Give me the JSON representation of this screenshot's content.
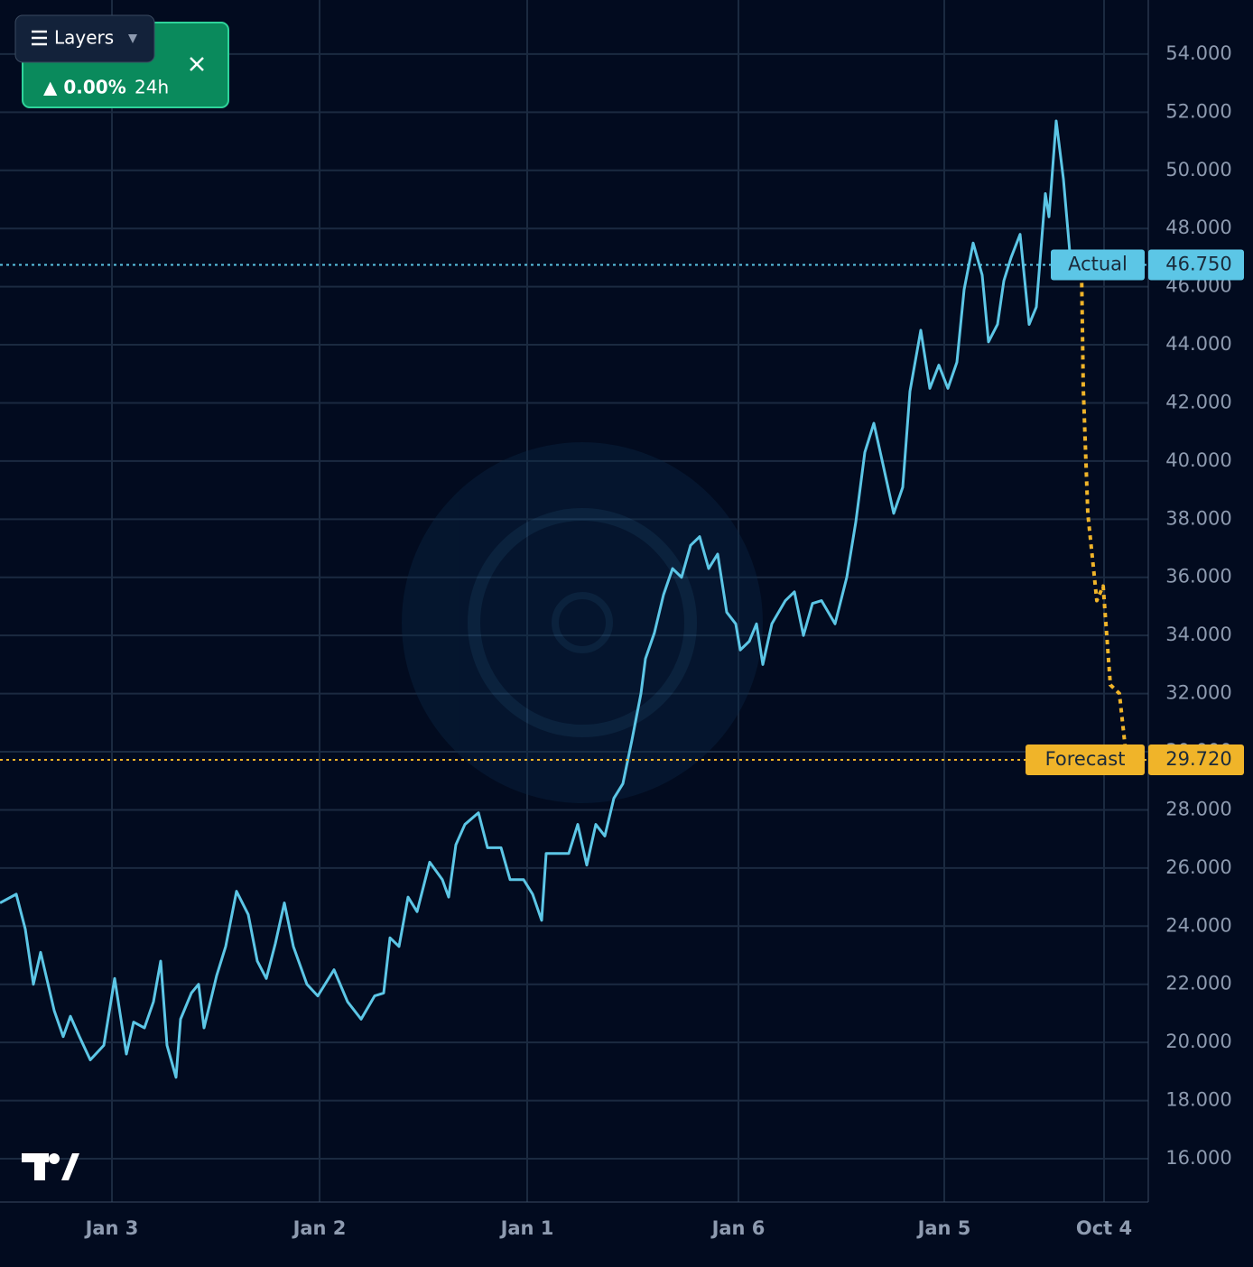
{
  "ui": {
    "layers_button": "Layers",
    "change": "▲ 0.00%",
    "period": "24h"
  },
  "chart_data": {
    "type": "line",
    "series": [
      {
        "name": "Actual",
        "color": "#5cc6e6",
        "dashed": false,
        "x": [
          0,
          1.8,
          2.8,
          3.7,
          4.5,
          6.0,
          7.0,
          7.8,
          8.8,
          10.0,
          11.5,
          12.7,
          14.0,
          14.8,
          16.0,
          17.0,
          17.8,
          18.5,
          19.5,
          20.0,
          21.2,
          22.0,
          22.6,
          24.0,
          25.0,
          26.2,
          27.5,
          28.5,
          29.5,
          30.5,
          31.5,
          32.5,
          34.0,
          35.2,
          37.0,
          38.5,
          40.0,
          41.5,
          42.5,
          43.2,
          44.2,
          45.2,
          46.2,
          47.6,
          49.0,
          49.7,
          50.5,
          51.5,
          53.0,
          54.0,
          55.5,
          56.5,
          58.0,
          59.0,
          60.0,
          60.5,
          62.0,
          63.0,
          64.0,
          65.0,
          66.0,
          67.0,
          68.0,
          69.0,
          70.0,
          71.0,
          71.5,
          72.5,
          73.5,
          74.5,
          75.5,
          76.5,
          77.5,
          78.5,
          79.5,
          80.5,
          81.5,
          82.0,
          83.0,
          83.8,
          84.5,
          85.5,
          87.0,
          88.0,
          89.0,
          90.0,
          91.0,
          92.5,
          93.8,
          94.8,
          95.8,
          96.8,
          97.8,
          99.0,
          100.0,
          100.8,
          102.0,
          103.0,
          104.0,
          105.0,
          106.0,
          106.8,
          107.8,
          108.8,
          109.5,
          110.5,
          111.2,
          112.0,
          113.0,
          114.0,
          114.8,
          115.8,
          116.2,
          117.0,
          117.8,
          118.5,
          119.5
        ],
        "values": [
          24.8,
          25.1,
          23.9,
          22.0,
          23.1,
          21.1,
          20.2,
          20.9,
          20.2,
          19.4,
          19.9,
          22.2,
          19.6,
          20.7,
          20.5,
          21.4,
          22.8,
          19.9,
          18.8,
          20.8,
          21.7,
          22.0,
          20.5,
          22.3,
          23.3,
          25.2,
          24.4,
          22.8,
          22.2,
          23.4,
          24.8,
          23.3,
          22.0,
          21.6,
          22.5,
          21.4,
          20.8,
          21.6,
          21.7,
          23.6,
          23.3,
          25.0,
          24.5,
          26.2,
          25.6,
          25.0,
          26.8,
          27.5,
          27.9,
          26.7,
          26.7,
          25.6,
          25.6,
          25.1,
          24.2,
          26.5,
          26.5,
          26.5,
          27.5,
          26.1,
          27.5,
          27.1,
          28.4,
          28.9,
          30.4,
          32.0,
          33.2,
          34.1,
          35.4,
          36.3,
          36.0,
          37.1,
          37.4,
          36.3,
          36.8,
          34.8,
          34.4,
          33.5,
          33.8,
          34.4,
          33.0,
          34.4,
          35.2,
          35.5,
          34.0,
          35.1,
          35.2,
          34.4,
          36.0,
          37.9,
          40.3,
          41.3,
          39.9,
          38.2,
          39.1,
          42.4,
          44.5,
          42.5,
          43.3,
          42.5,
          43.4,
          45.9,
          47.5,
          46.4,
          44.1,
          44.7,
          46.2,
          47.0,
          47.8,
          44.7,
          45.3,
          49.2,
          48.4,
          51.7,
          49.7,
          47.2,
          46.75
        ]
      },
      {
        "name": "Forecast",
        "color": "#f0b429",
        "dashed": true,
        "x": [
          119.8,
          120.0,
          120.5,
          121.5,
          122.2,
          123.0,
          124.0,
          124.8
        ],
        "values": [
          46.75,
          42.5,
          38.2,
          35.2,
          35.7,
          32.3,
          32.0,
          29.72
        ]
      }
    ],
    "markers": [
      {
        "label": "Actual",
        "value": 46.75,
        "value_label": "46.750",
        "color": "#5cc6e6"
      },
      {
        "label": "Forecast",
        "value": 29.72,
        "value_label": "29.720",
        "color": "#f0b429"
      }
    ],
    "xlim": [
      0,
      127.2
    ],
    "xticks": [
      {
        "value": 12.4,
        "label": "Jan 3"
      },
      {
        "value": 35.4,
        "label": "Jan 2"
      },
      {
        "value": 58.4,
        "label": "Jan 1"
      },
      {
        "value": 81.8,
        "label": "Jan 6"
      },
      {
        "value": 104.6,
        "label": "Jan 5"
      },
      {
        "value": 122.3,
        "label": "Oct 4"
      }
    ],
    "ylim": [
      14.51,
      55.86
    ],
    "yticks": [
      {
        "value": 16,
        "label": "16.000"
      },
      {
        "value": 18,
        "label": "18.000"
      },
      {
        "value": 20,
        "label": "20.000"
      },
      {
        "value": 22,
        "label": "22.000"
      },
      {
        "value": 24,
        "label": "24.000"
      },
      {
        "value": 26,
        "label": "26.000"
      },
      {
        "value": 28,
        "label": "28.000"
      },
      {
        "value": 30,
        "label": "30.000"
      },
      {
        "value": 32,
        "label": "32.000"
      },
      {
        "value": 34,
        "label": "34.000"
      },
      {
        "value": 36,
        "label": "36.000"
      },
      {
        "value": 38,
        "label": "38.000"
      },
      {
        "value": 40,
        "label": "40.000"
      },
      {
        "value": 42,
        "label": "42.000"
      },
      {
        "value": 44,
        "label": "44.000"
      },
      {
        "value": 46,
        "label": "46.000"
      },
      {
        "value": 48,
        "label": "48.000"
      },
      {
        "value": 50,
        "label": "50.000"
      },
      {
        "value": 52,
        "label": "52.000"
      },
      {
        "value": 54,
        "label": "54.000"
      }
    ],
    "grid": true
  }
}
